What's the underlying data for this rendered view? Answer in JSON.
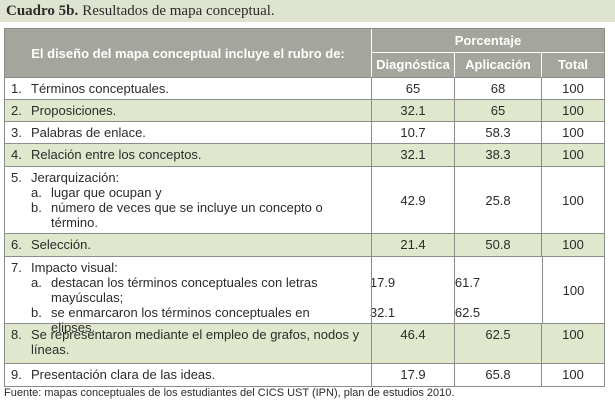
{
  "title": {
    "label": "Cuadro 5b.",
    "text": "Resultados de mapa conceptual."
  },
  "table": {
    "header": {
      "rubro": "El diseño del mapa conceptual incluye el rubro de:",
      "group": "Porcentaje",
      "columns": [
        "Diagnóstica",
        "Aplicación",
        "Total"
      ]
    },
    "rows": [
      {
        "num": "1.",
        "label": "Términos conceptuales.",
        "diag": 65,
        "apl": 68,
        "total": 100
      },
      {
        "num": "2.",
        "label": "Proposiciones.",
        "diag": 32.1,
        "apl": 65,
        "total": 100
      },
      {
        "num": "3.",
        "label": "Palabras de enlace.",
        "diag": 10.7,
        "apl": 58.3,
        "total": 100
      },
      {
        "num": "4.",
        "label": "Relación entre los conceptos.",
        "diag": 32.1,
        "apl": 38.3,
        "total": 100
      },
      {
        "num": "5.",
        "label": "Jerarquización:",
        "items": [
          {
            "letter": "a.",
            "text": "lugar que ocupan y"
          },
          {
            "letter": "b.",
            "text": "número de veces que se incluye un concepto o término."
          }
        ],
        "diag": 42.9,
        "apl": 25.8,
        "total": 100
      },
      {
        "num": "6.",
        "label": "Selección.",
        "diag": 21.4,
        "apl": 50.8,
        "total": 100
      },
      {
        "num": "7.",
        "label": "Impacto visual:",
        "items": [
          {
            "letter": "a.",
            "text": "destacan los términos conceptuales con letras mayúsculas;",
            "diag": 17.9,
            "apl": 61.7
          },
          {
            "letter": "b.",
            "text": "se enmarcaron los términos conceptuales en elipses.",
            "diag": 32.1,
            "apl": 62.5
          }
        ],
        "total": 100
      },
      {
        "num": "8.",
        "label": "Se representaron mediante el empleo de grafos, nodos y líneas.",
        "diag": 46.4,
        "apl": 62.5,
        "total": 100
      },
      {
        "num": "9.",
        "label": "Presentación clara de las ideas.",
        "diag": 17.9,
        "apl": 65.8,
        "total": 100
      }
    ]
  },
  "footer": "Fuente: mapas conceptuales de los estudiantes del CICS UST (IPN), plan de estudios 2010."
}
